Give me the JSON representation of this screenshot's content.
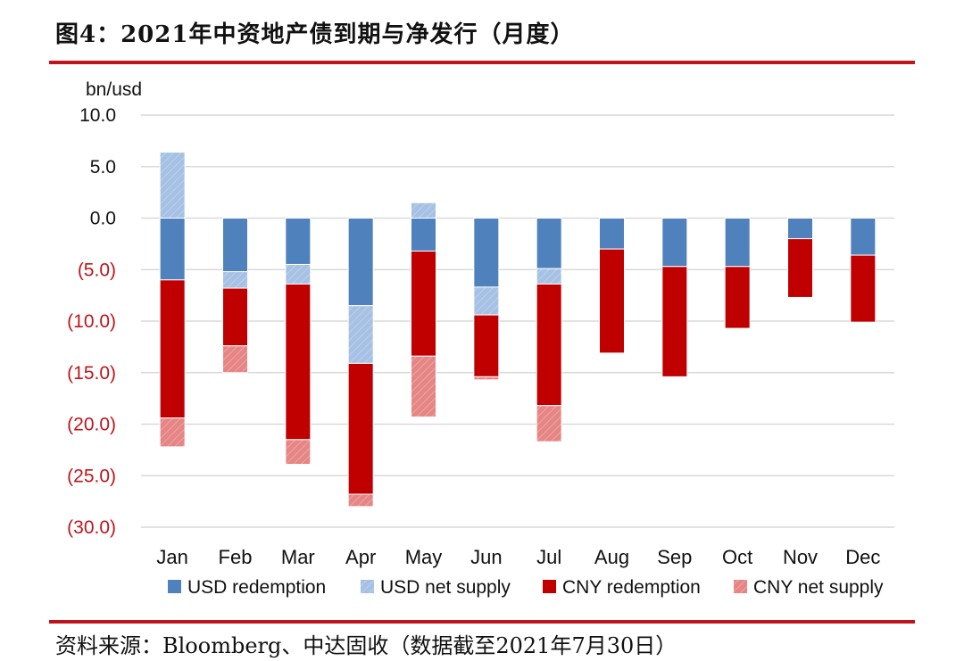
{
  "title": "图4：2021年中资地产债到期与净发行（月度）",
  "source": "资料来源：Bloomberg、中达固收（数据截至2021年7月30日）",
  "chart_data": {
    "type": "bar",
    "stacked": true,
    "ylabel": "bn/usd",
    "ylim": [
      -30,
      10
    ],
    "yticks": [
      "10.0",
      "5.0",
      "0.0",
      "(5.0)",
      "(10.0)",
      "(15.0)",
      "(20.0)",
      "(25.0)",
      "(30.0)"
    ],
    "categories": [
      "Jan",
      "Feb",
      "Mar",
      "Apr",
      "May",
      "Jun",
      "Jul",
      "Aug",
      "Sep",
      "Oct",
      "Nov",
      "Dec"
    ],
    "grid": true,
    "legend_position": "bottom",
    "colors": {
      "positive_tick": "#111111",
      "negative_tick": "#c0141c"
    },
    "series": [
      {
        "name": "USD redemption",
        "color": "#4f81bd",
        "values": [
          -6.0,
          -5.2,
          -4.5,
          -8.5,
          -3.2,
          -6.7,
          -4.9,
          -3.0,
          -4.7,
          -4.7,
          -2.0,
          -3.6
        ]
      },
      {
        "name": "USD net supply",
        "color": "#a6c1e4",
        "values": [
          6.4,
          -1.6,
          -1.9,
          -5.6,
          1.5,
          -2.7,
          -1.5,
          0,
          0,
          0,
          0,
          0
        ]
      },
      {
        "name": "CNY redemption",
        "color": "#c00000",
        "values": [
          -13.4,
          -5.6,
          -15.1,
          -12.7,
          -10.2,
          -6.0,
          -11.8,
          -10.1,
          -10.7,
          -6.0,
          -5.7,
          -6.5
        ]
      },
      {
        "name": "CNY net supply",
        "color": "#e88a8a",
        "values": [
          -2.8,
          -2.6,
          -2.4,
          -1.2,
          -5.9,
          -0.3,
          -3.5,
          0,
          0,
          0,
          0,
          0
        ]
      }
    ]
  }
}
